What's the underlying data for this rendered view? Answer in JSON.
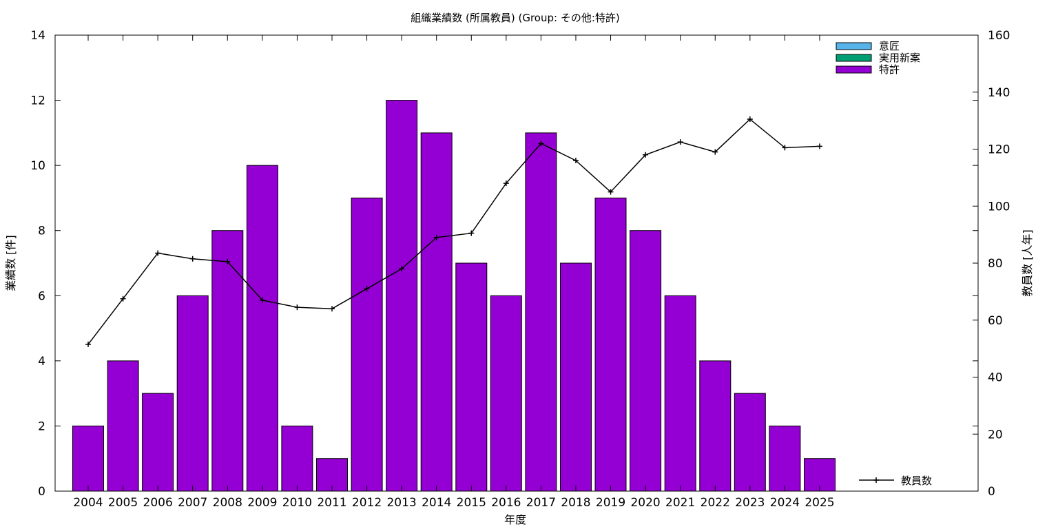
{
  "chart_data": {
    "type": "bar",
    "title": "組織業績数 (所属教員) (Group: その他:特許)",
    "xlabel": "年度",
    "ylabel": "業績数 [件]",
    "y2label": "教員数 [人年]",
    "categories": [
      "2004",
      "2005",
      "2006",
      "2007",
      "2008",
      "2009",
      "2010",
      "2011",
      "2012",
      "2013",
      "2014",
      "2015",
      "2016",
      "2017",
      "2018",
      "2019",
      "2020",
      "2021",
      "2022",
      "2023",
      "2024",
      "2025"
    ],
    "ylim": [
      0,
      14
    ],
    "yticks": [
      0,
      2,
      4,
      6,
      8,
      10,
      12,
      14
    ],
    "y2lim": [
      0,
      160
    ],
    "y2ticks": [
      0,
      20,
      40,
      60,
      80,
      100,
      120,
      140,
      160
    ],
    "grid": false,
    "legend_position": "top-right",
    "series": [
      {
        "name": "意匠",
        "kind": "bar",
        "color": "#56b4e9",
        "values": [
          0,
          0,
          0,
          0,
          0,
          0,
          0,
          0,
          0,
          0,
          0,
          0,
          0,
          0,
          0,
          0,
          0,
          0,
          0,
          0,
          0,
          0
        ]
      },
      {
        "name": "実用新案",
        "kind": "bar",
        "color": "#009e73",
        "values": [
          0,
          0,
          0,
          0,
          0,
          0,
          0,
          0,
          0,
          0,
          0,
          0,
          0,
          0,
          0,
          0,
          0,
          0,
          0,
          0,
          0,
          0
        ]
      },
      {
        "name": "特許",
        "kind": "bar",
        "color": "#9400d3",
        "values": [
          2,
          4,
          3,
          6,
          8,
          10,
          2,
          1,
          9,
          12,
          11,
          7,
          6,
          11,
          7,
          9,
          8,
          6,
          4,
          3,
          2,
          1
        ]
      }
    ],
    "line_series": {
      "name": "教員数",
      "axis": "y2",
      "color": "#000000",
      "values": [
        51.5,
        67.5,
        83.5,
        81.5,
        80.5,
        67,
        64.5,
        64,
        71,
        78,
        89,
        90.5,
        108,
        122,
        116,
        105,
        118,
        122.5,
        119,
        130.5,
        120.5,
        121
      ]
    }
  }
}
